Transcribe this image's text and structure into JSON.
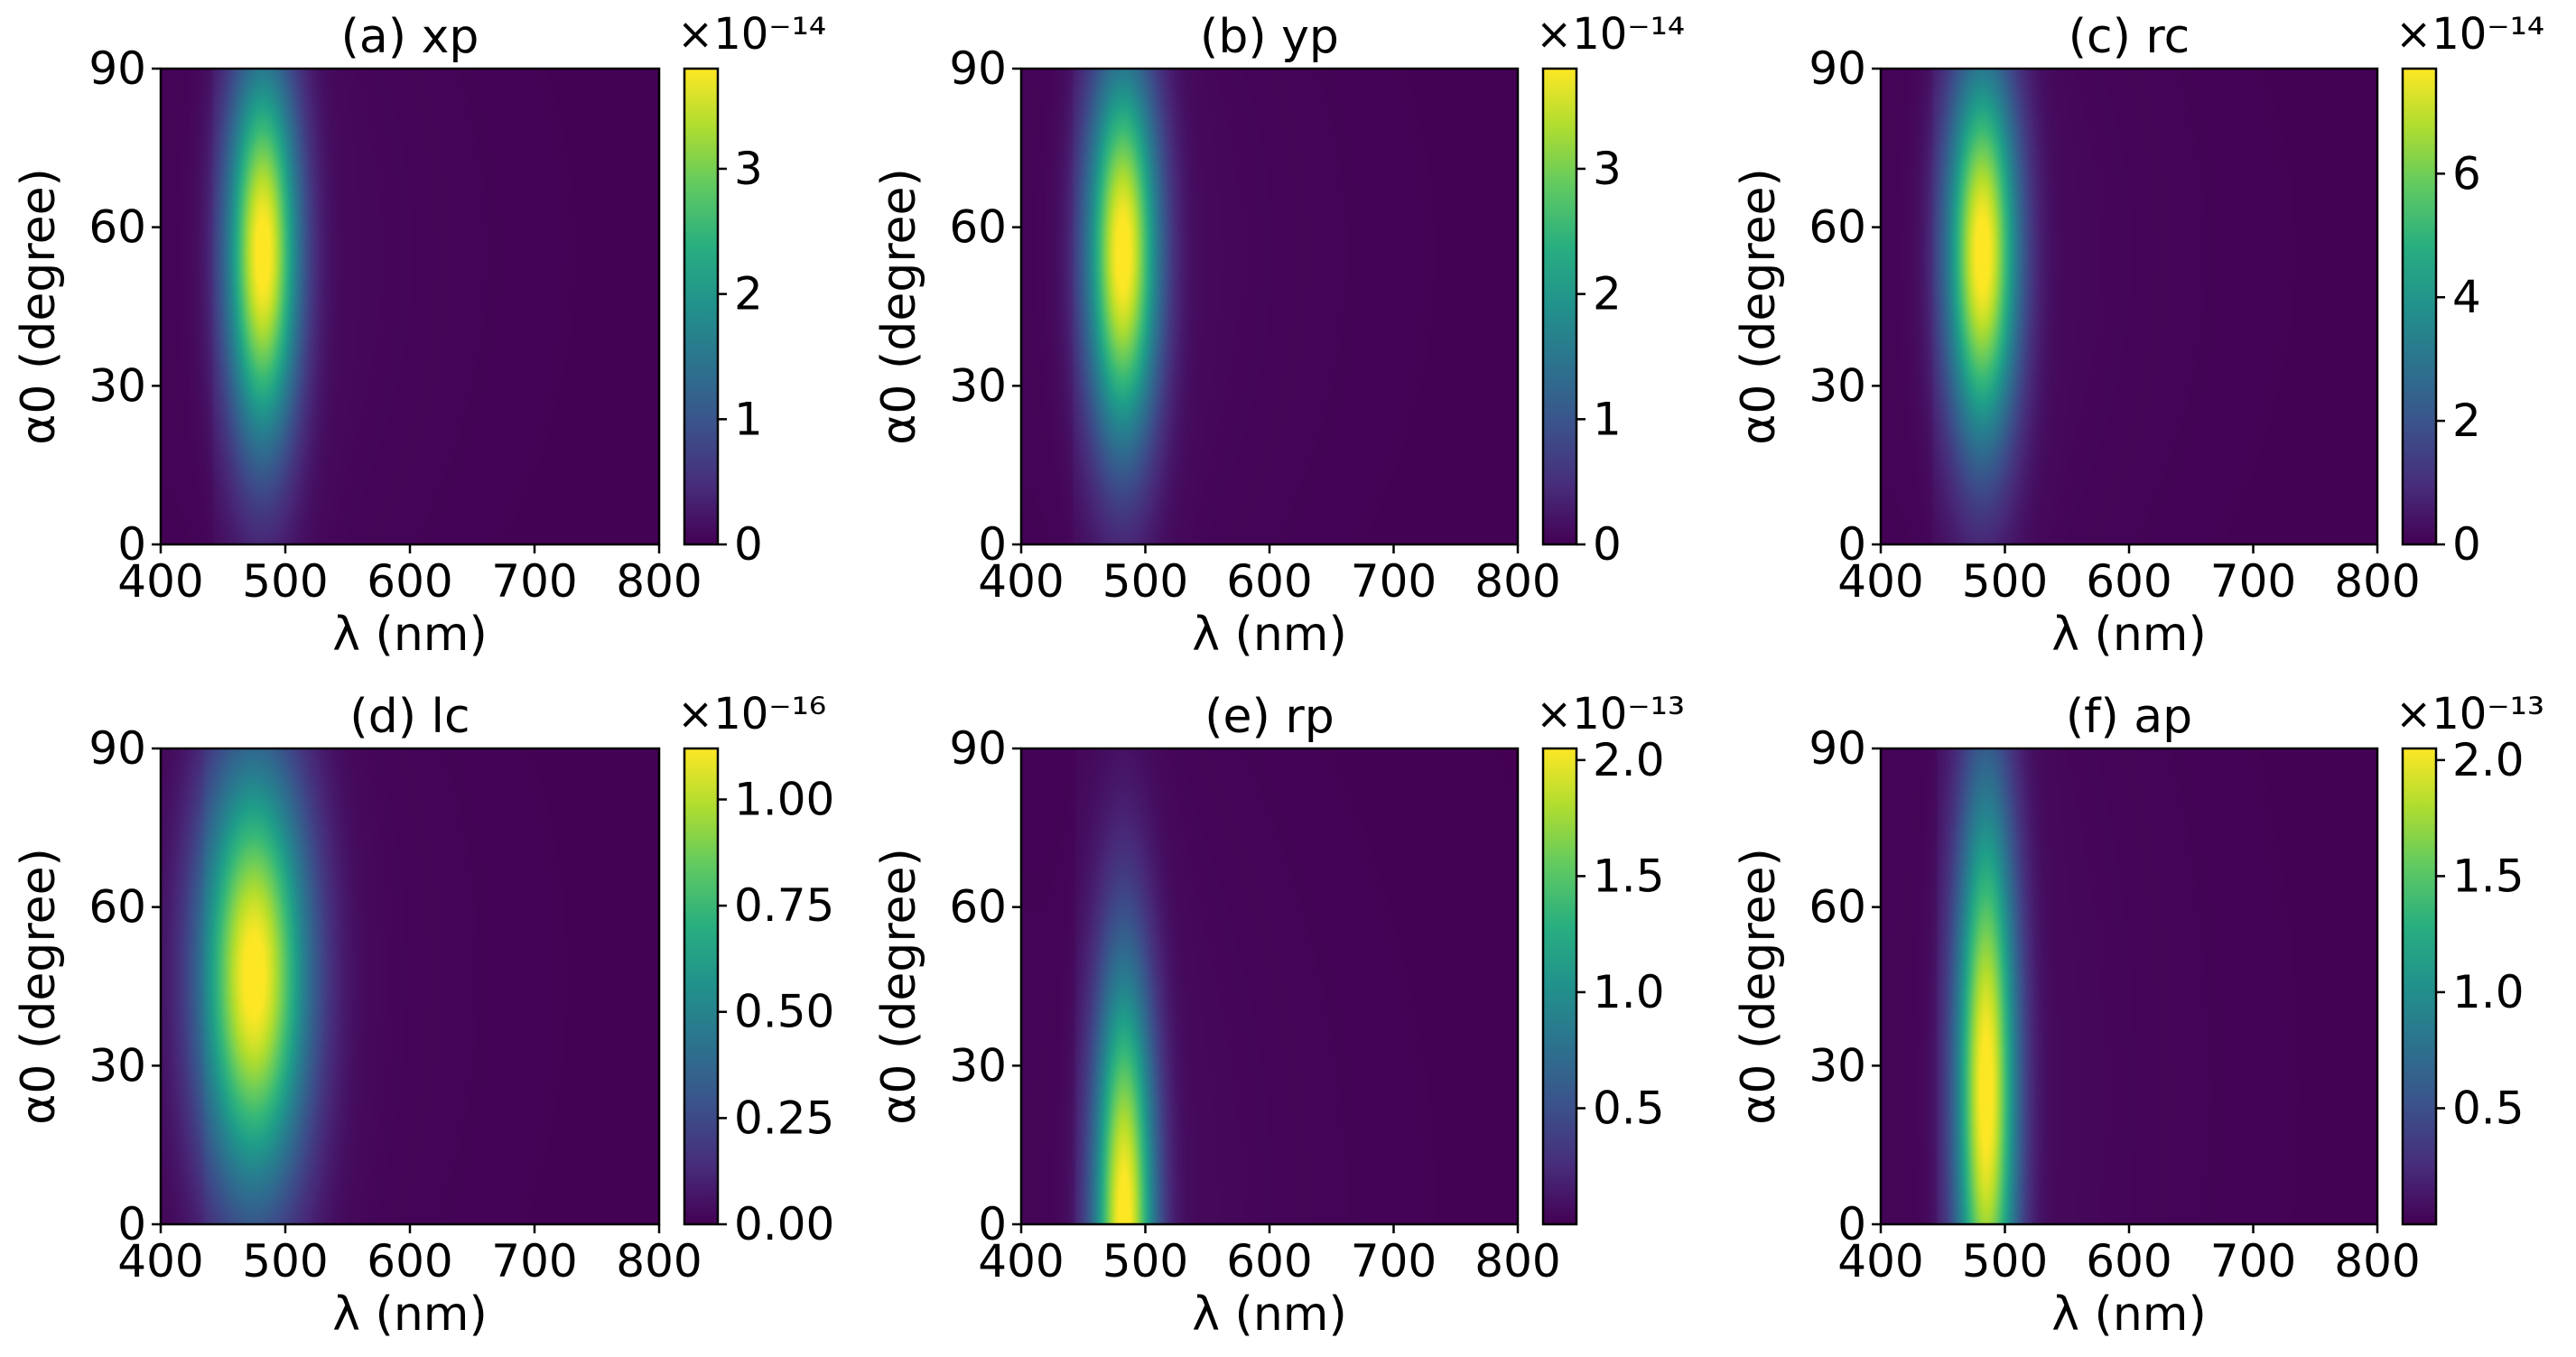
{
  "chart_data": [
    {
      "type": "heatmap",
      "title": "(a) xp",
      "xlabel": "λ (nm)",
      "ylabel": "α0 (degree)",
      "xlim": [
        400,
        800
      ],
      "ylim": [
        0,
        90
      ],
      "xticks": [
        400,
        500,
        600,
        700,
        800
      ],
      "yticks": [
        0,
        30,
        60,
        90
      ],
      "colorbar": {
        "exponent_label": "×10⁻¹⁴",
        "range": [
          0,
          3.8
        ],
        "ticks": [
          0,
          1,
          2,
          3
        ],
        "tick_labels": [
          "0",
          "1",
          "2",
          "3"
        ]
      },
      "peak": {
        "lambda_nm": 482,
        "alpha_deg": 55,
        "value": 3.8,
        "lambda_width_nm": 20,
        "alpha_width_deg": 25
      }
    },
    {
      "type": "heatmap",
      "title": "(b) yp",
      "xlabel": "λ (nm)",
      "ylabel": "α0 (degree)",
      "xlim": [
        400,
        800
      ],
      "ylim": [
        0,
        90
      ],
      "xticks": [
        400,
        500,
        600,
        700,
        800
      ],
      "yticks": [
        0,
        30,
        60,
        90
      ],
      "colorbar": {
        "exponent_label": "×10⁻¹⁴",
        "range": [
          0,
          3.8
        ],
        "ticks": [
          0,
          1,
          2,
          3
        ],
        "tick_labels": [
          "0",
          "1",
          "2",
          "3"
        ]
      },
      "peak": {
        "lambda_nm": 482,
        "alpha_deg": 55,
        "value": 3.8,
        "lambda_width_nm": 20,
        "alpha_width_deg": 25
      }
    },
    {
      "type": "heatmap",
      "title": "(c) rc",
      "xlabel": "λ (nm)",
      "ylabel": "α0 (degree)",
      "xlim": [
        400,
        800
      ],
      "ylim": [
        0,
        90
      ],
      "xticks": [
        400,
        500,
        600,
        700,
        800
      ],
      "yticks": [
        0,
        30,
        60,
        90
      ],
      "colorbar": {
        "exponent_label": "×10⁻¹⁴",
        "range": [
          0,
          7.7
        ],
        "ticks": [
          0,
          2,
          4,
          6
        ],
        "tick_labels": [
          "0",
          "2",
          "4",
          "6"
        ]
      },
      "peak": {
        "lambda_nm": 482,
        "alpha_deg": 55,
        "value": 7.7,
        "lambda_width_nm": 20,
        "alpha_width_deg": 25
      }
    },
    {
      "type": "heatmap",
      "title": "(d) lc",
      "xlabel": "λ (nm)",
      "ylabel": "α0 (degree)",
      "xlim": [
        400,
        800
      ],
      "ylim": [
        0,
        90
      ],
      "xticks": [
        400,
        500,
        600,
        700,
        800
      ],
      "yticks": [
        0,
        30,
        60,
        90
      ],
      "colorbar": {
        "exponent_label": "×10⁻¹⁶",
        "range": [
          0,
          1.12
        ],
        "ticks": [
          0,
          0.25,
          0.5,
          0.75,
          1.0
        ],
        "tick_labels": [
          "0.00",
          "0.25",
          "0.50",
          "0.75",
          "1.00"
        ]
      },
      "peak": {
        "lambda_nm": 475,
        "alpha_deg": 47,
        "value": 1.12,
        "lambda_width_nm": 30,
        "alpha_width_deg": 28
      }
    },
    {
      "type": "heatmap",
      "title": "(e) rp",
      "xlabel": "λ (nm)",
      "ylabel": "α0 (degree)",
      "xlim": [
        400,
        800
      ],
      "ylim": [
        0,
        90
      ],
      "xticks": [
        400,
        500,
        600,
        700,
        800
      ],
      "yticks": [
        0,
        30,
        60,
        90
      ],
      "colorbar": {
        "exponent_label": "×10⁻¹³",
        "range": [
          0,
          2.05
        ],
        "ticks": [
          0.5,
          1.0,
          1.5,
          2.0
        ],
        "tick_labels": [
          "0.5",
          "1.0",
          "1.5",
          "2.0"
        ]
      },
      "peak": {
        "lambda_nm": 483,
        "alpha_deg": 0,
        "value": 2.05,
        "lambda_width_nm": 17,
        "alpha_width_deg": 34
      }
    },
    {
      "type": "heatmap",
      "title": "(f) ap",
      "xlabel": "λ (nm)",
      "ylabel": "α0 (degree)",
      "xlim": [
        400,
        800
      ],
      "ylim": [
        0,
        90
      ],
      "xticks": [
        400,
        500,
        600,
        700,
        800
      ],
      "yticks": [
        0,
        30,
        60,
        90
      ],
      "colorbar": {
        "exponent_label": "×10⁻¹³",
        "range": [
          0,
          2.05
        ],
        "ticks": [
          0.5,
          1.0,
          1.5,
          2.0
        ],
        "tick_labels": [
          "0.5",
          "1.0",
          "1.5",
          "2.0"
        ]
      },
      "peak": {
        "lambda_nm": 485,
        "alpha_deg": 25,
        "value": 2.05,
        "lambda_width_nm": 17,
        "alpha_width_deg": 40
      }
    }
  ]
}
